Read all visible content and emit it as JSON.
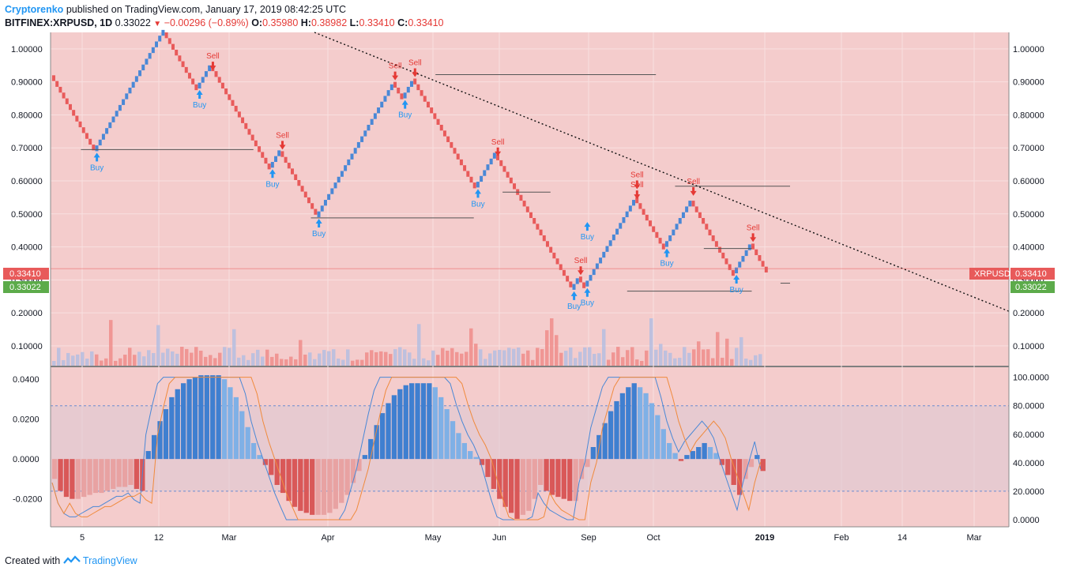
{
  "header": {
    "author": "Cryptorenko",
    "published": "published on TradingView.com, January 17, 2019 08:42:25 UTC",
    "symbol": "BITFINEX:XRPUSD, 1D",
    "last": "0.33022",
    "change": "−0.00296 (−0.89%)",
    "open_label": "O:",
    "open": "0.35980",
    "high_label": "H:",
    "high": "0.38982",
    "low_label": "L:",
    "low": "0.33410",
    "close_label": "C:",
    "close": "0.33410"
  },
  "footer": {
    "created": "Created with",
    "brand": "TradingView"
  },
  "price_badges": {
    "symbol_tag": "XRPUSD",
    "red_value": "0.33410",
    "green_value": "0.33022"
  },
  "colors": {
    "bg": "#f4cccc",
    "up": "#4a88d6",
    "down": "#e85a5a",
    "signal_up": "#2196f3",
    "signal_down": "#e53935"
  },
  "chart_data": [
    {
      "type": "renko",
      "y_ticks": [
        "0.10000",
        "0.20000",
        "0.30000",
        "0.40000",
        "0.50000",
        "0.60000",
        "0.70000",
        "0.80000",
        "0.90000",
        "1.00000"
      ],
      "ylim": [
        0.04,
        1.05
      ],
      "x_ticks": [
        "5",
        "12",
        "Mar",
        "Apr",
        "May",
        "Jun",
        "Sep",
        "Oct",
        "2019",
        "Feb",
        "14",
        "Mar"
      ],
      "box_size": 0.0175,
      "legs": [
        {
          "dir": "down",
          "from": 0.92,
          "to": 0.69
        },
        {
          "dir": "up",
          "from": 0.69,
          "to": 1.05
        },
        {
          "dir": "down",
          "from": 1.05,
          "to": 0.88
        },
        {
          "dir": "up",
          "from": 0.88,
          "to": 0.95
        },
        {
          "dir": "down",
          "from": 0.95,
          "to": 0.64
        },
        {
          "dir": "up",
          "from": 0.64,
          "to": 0.69
        },
        {
          "dir": "down",
          "from": 0.69,
          "to": 0.49
        },
        {
          "dir": "up",
          "from": 0.49,
          "to": 0.9
        },
        {
          "dir": "down",
          "from": 0.9,
          "to": 0.85
        },
        {
          "dir": "up",
          "from": 0.85,
          "to": 0.91
        },
        {
          "dir": "down",
          "from": 0.91,
          "to": 0.58
        },
        {
          "dir": "up",
          "from": 0.58,
          "to": 0.68
        },
        {
          "dir": "down",
          "from": 0.68,
          "to": 0.27
        },
        {
          "dir": "up",
          "from": 0.27,
          "to": 0.31
        },
        {
          "dir": "down",
          "from": 0.31,
          "to": 0.28
        },
        {
          "dir": "up",
          "from": 0.28,
          "to": 0.55
        },
        {
          "dir": "down",
          "from": 0.55,
          "to": 0.4
        },
        {
          "dir": "up",
          "from": 0.4,
          "to": 0.54
        },
        {
          "dir": "down",
          "from": 0.54,
          "to": 0.32
        },
        {
          "dir": "up",
          "from": 0.32,
          "to": 0.41
        },
        {
          "dir": "down",
          "from": 0.41,
          "to": 0.33
        }
      ],
      "signals": [
        {
          "label": "Buy",
          "price": 0.69,
          "leg": 1
        },
        {
          "label": "Sell",
          "price": 0.93,
          "leg": 4
        },
        {
          "label": "Buy",
          "price": 0.88,
          "leg": 3
        },
        {
          "label": "Sell",
          "price": 0.69,
          "leg": 6
        },
        {
          "label": "Buy",
          "price": 0.64,
          "leg": 5
        },
        {
          "label": "Buy",
          "price": 0.49,
          "leg": 7
        },
        {
          "label": "Sell",
          "price": 0.9,
          "leg": 8
        },
        {
          "label": "Buy",
          "price": 0.85,
          "leg": 9
        },
        {
          "label": "Sell",
          "price": 0.91,
          "leg": 10
        },
        {
          "label": "Sell",
          "price": 0.67,
          "leg": 12
        },
        {
          "label": "Buy",
          "price": 0.58,
          "leg": 11
        },
        {
          "label": "Sell",
          "price": 0.31,
          "leg": 14
        },
        {
          "label": "Buy",
          "price": 0.27,
          "leg": 13
        },
        {
          "label": "Buy",
          "price": 0.28,
          "leg": 15
        },
        {
          "label": "Sell",
          "price": 0.57,
          "leg": 16
        },
        {
          "label": "Sell",
          "price": 0.54,
          "leg": 16
        },
        {
          "label": "Buy",
          "price": 0.4,
          "leg": 17
        },
        {
          "label": "Buy",
          "price": 0.48,
          "leg": 15
        },
        {
          "label": "Sell",
          "price": 0.55,
          "leg": 18
        },
        {
          "label": "Sell",
          "price": 0.41,
          "leg": 20
        },
        {
          "label": "Buy",
          "price": 0.32,
          "leg": 19
        }
      ],
      "levels": [
        {
          "price": 0.695,
          "x0": 0.03,
          "x1": 0.21
        },
        {
          "price": 0.488,
          "x0": 0.27,
          "x1": 0.44
        },
        {
          "price": 0.922,
          "x0": 0.4,
          "x1": 0.63
        },
        {
          "price": 0.566,
          "x0": 0.47,
          "x1": 0.52
        },
        {
          "price": 0.266,
          "x0": 0.6,
          "x1": 0.73
        },
        {
          "price": 0.584,
          "x0": 0.65,
          "x1": 0.77
        },
        {
          "price": 0.395,
          "x0": 0.68,
          "x1": 0.73
        },
        {
          "price": 0.29,
          "x0": 0.76,
          "x1": 0.77
        }
      ],
      "trendline": {
        "p0": 1.05,
        "p1": 0.205
      },
      "current_price": 0.3341
    },
    {
      "type": "histogram",
      "y_ticks": [
        "-0.0200",
        "0.0000",
        "0.0200",
        "0.0400"
      ],
      "ylim": [
        -0.034,
        0.046
      ],
      "right_ticks": [
        "0.0000",
        "20.0000",
        "40.0000",
        "60.0000",
        "80.0000",
        "100.0000"
      ],
      "right_lim": [
        -5,
        107
      ],
      "hist": [
        -0.01,
        -0.016,
        -0.019,
        -0.02,
        -0.02,
        -0.019,
        -0.018,
        -0.017,
        -0.017,
        -0.016,
        -0.015,
        -0.014,
        -0.014,
        -0.013,
        -0.015,
        -0.016,
        0.004,
        0.012,
        0.019,
        0.025,
        0.031,
        0.035,
        0.038,
        0.04,
        0.041,
        0.042,
        0.042,
        0.042,
        0.042,
        0.04,
        0.036,
        0.031,
        0.024,
        0.016,
        0.008,
        0.002,
        -0.003,
        -0.008,
        -0.013,
        -0.017,
        -0.021,
        -0.024,
        -0.026,
        -0.027,
        -0.028,
        -0.028,
        -0.028,
        -0.027,
        -0.025,
        -0.022,
        -0.018,
        -0.012,
        -0.006,
        0.002,
        0.01,
        0.017,
        0.023,
        0.028,
        0.032,
        0.035,
        0.037,
        0.038,
        0.038,
        0.038,
        0.038,
        0.036,
        0.031,
        0.025,
        0.019,
        0.013,
        0.008,
        0.004,
        0.001,
        -0.003,
        -0.009,
        -0.015,
        -0.02,
        -0.024,
        -0.027,
        -0.03,
        -0.028,
        -0.026,
        -0.02,
        -0.013,
        -0.016,
        -0.018,
        -0.019,
        -0.02,
        -0.021,
        -0.021,
        -0.01,
        -0.004,
        0.006,
        0.012,
        0.018,
        0.024,
        0.029,
        0.033,
        0.036,
        0.038,
        0.036,
        0.033,
        0.028,
        0.022,
        0.015,
        0.008,
        0.003,
        -0.001,
        0.002,
        0.004,
        0.006,
        0.008,
        0.006,
        0.003,
        -0.003,
        -0.008,
        -0.013,
        -0.018,
        -0.01,
        -0.004,
        0.002,
        -0.006
      ]
    }
  ]
}
